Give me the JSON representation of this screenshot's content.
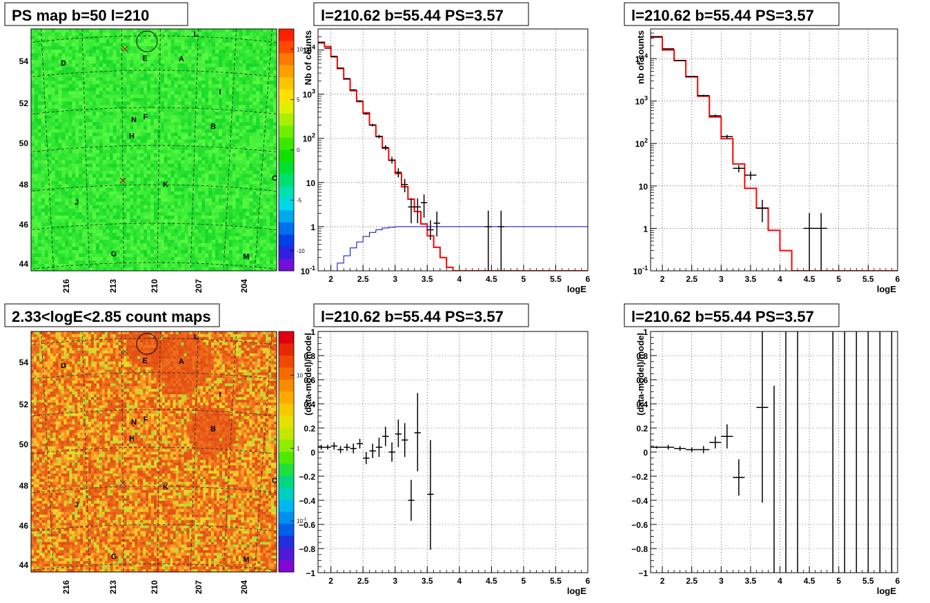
{
  "chart_data": [
    {
      "type": "heatmap",
      "title": "PS map b=50 l=210",
      "x_tick_labels": [
        "216",
        "213",
        "210",
        "207",
        "204"
      ],
      "y_tick_labels": [
        "44",
        "46",
        "48",
        "50",
        "52",
        "54"
      ],
      "colorbar": {
        "scale": "linear",
        "range": [
          -12,
          12
        ],
        "tick_labels": [
          "10",
          "5",
          "0",
          "-5",
          "-10"
        ]
      },
      "source_labels": [
        "L",
        "E",
        "A",
        "D",
        "I",
        "N",
        "F",
        "H",
        "B",
        "C",
        "K",
        "J",
        "G",
        "M"
      ]
    },
    {
      "type": "line",
      "title": "l=210.62 b=55.44 PS=3.57",
      "xlabel": "logE",
      "ylabel": "Nb of counts",
      "xlim": [
        1.8,
        6
      ],
      "ylim": [
        0.1,
        30000
      ],
      "yscale": "log",
      "grid": true,
      "x_tick_labels": [
        "2",
        "2.5",
        "3",
        "3.5",
        "4",
        "4.5",
        "5",
        "5.5",
        "6"
      ],
      "y_tick_labels": [
        "10^-1",
        "1",
        "10",
        "10^2",
        "10^3",
        "10^4"
      ],
      "series": [
        {
          "name": "",
          "role": "model",
          "color": "#ff0000",
          "bin_edges": [
            1.8,
            1.9,
            2.0,
            2.1,
            2.2,
            2.3,
            2.4,
            2.5,
            2.6,
            2.7,
            2.8,
            2.9,
            3.0,
            3.1,
            3.2,
            3.3,
            3.4,
            3.5,
            3.6,
            3.7,
            3.8,
            3.9,
            4.0,
            4.1,
            4.2,
            4.3,
            4.4,
            4.5,
            4.6,
            4.7,
            4.8,
            4.9,
            5.0,
            5.1,
            5.2,
            5.3,
            5.4,
            5.5,
            5.6,
            5.7,
            5.8,
            5.9,
            6.0
          ],
          "values": [
            15000,
            12000,
            7000,
            3800,
            2200,
            1200,
            680,
            380,
            200,
            110,
            60,
            32,
            16,
            8,
            4.2,
            2.2,
            1.15,
            0.62,
            0.34,
            0.2,
            0.12,
            0.1,
            0.1,
            0.1,
            0.1,
            0.1,
            0.1,
            0.1,
            0.1,
            0.1,
            0.1,
            0.1,
            0.1,
            0.1,
            0.1,
            0.1,
            0.1,
            0.1,
            0.1,
            0.1,
            0.1,
            0.1
          ]
        },
        {
          "name": "",
          "role": "background",
          "color": "#0000cc",
          "bin_edges": [
            2.0,
            2.1,
            2.2,
            2.3,
            2.4,
            2.5,
            2.6,
            2.7,
            2.8,
            2.9,
            3.0,
            3.1,
            3.2,
            3.3,
            3.4,
            3.5,
            3.6,
            3.7,
            3.8,
            3.9,
            4.0,
            4.1,
            4.2,
            4.3,
            4.4,
            4.5,
            4.6,
            4.7,
            4.8,
            4.9,
            5.0,
            5.1,
            5.2,
            5.3,
            5.4,
            5.5,
            5.6,
            5.7,
            5.8,
            5.9,
            6.0
          ],
          "values": [
            0.1,
            0.15,
            0.22,
            0.33,
            0.45,
            0.6,
            0.74,
            0.85,
            0.93,
            0.97,
            1,
            1,
            1,
            1,
            1,
            1,
            1,
            1,
            1,
            1,
            1,
            1,
            1,
            1,
            1,
            1,
            1,
            1,
            1,
            1,
            1,
            1,
            1,
            1,
            1,
            1,
            1,
            1,
            1,
            1
          ]
        },
        {
          "name": "",
          "role": "data",
          "color": "#000000",
          "points": [
            {
              "x": 1.85,
              "y": 14500,
              "xerr": 0.05,
              "lo": 14300,
              "hi": 14700
            },
            {
              "x": 1.95,
              "y": 11000,
              "xerr": 0.05,
              "lo": 10800,
              "hi": 11200
            },
            {
              "x": 2.05,
              "y": 7200,
              "xerr": 0.05,
              "lo": 7000,
              "hi": 7400
            },
            {
              "x": 2.15,
              "y": 3900,
              "xerr": 0.05,
              "lo": 3800,
              "hi": 4000
            },
            {
              "x": 2.25,
              "y": 2250,
              "xerr": 0.05,
              "lo": 2200,
              "hi": 2300
            },
            {
              "x": 2.35,
              "y": 1250,
              "xerr": 0.05,
              "lo": 1215,
              "hi": 1285
            },
            {
              "x": 2.45,
              "y": 700,
              "xerr": 0.05,
              "lo": 674,
              "hi": 726
            },
            {
              "x": 2.55,
              "y": 360,
              "xerr": 0.05,
              "lo": 341,
              "hi": 379
            },
            {
              "x": 2.65,
              "y": 200,
              "xerr": 0.05,
              "lo": 186,
              "hi": 214
            },
            {
              "x": 2.75,
              "y": 110,
              "xerr": 0.05,
              "lo": 100,
              "hi": 120
            },
            {
              "x": 2.85,
              "y": 62,
              "xerr": 0.05,
              "lo": 54,
              "hi": 70
            },
            {
              "x": 2.95,
              "y": 32,
              "xerr": 0.05,
              "lo": 27,
              "hi": 38
            },
            {
              "x": 3.05,
              "y": 17,
              "xerr": 0.05,
              "lo": 13,
              "hi": 21
            },
            {
              "x": 3.15,
              "y": 9,
              "xerr": 0.05,
              "lo": 6,
              "hi": 12
            },
            {
              "x": 3.25,
              "y": 2.8,
              "xerr": 0.05,
              "lo": 1.2,
              "hi": 4.4
            },
            {
              "x": 3.35,
              "y": 2.8,
              "xerr": 0.05,
              "lo": 1.2,
              "hi": 4.4
            },
            {
              "x": 3.45,
              "y": 3.5,
              "xerr": 0.05,
              "lo": 1.6,
              "hi": 5.4
            },
            {
              "x": 3.55,
              "y": 0.85,
              "xerr": 0.05,
              "lo": 0.5,
              "hi": 1.4
            },
            {
              "x": 3.65,
              "y": 1.2,
              "xerr": 0.05,
              "lo": 0.6,
              "hi": 2.2
            },
            {
              "x": 4.45,
              "y": 1,
              "xerr": 0.05,
              "lo": 0.1,
              "hi": 2.3
            },
            {
              "x": 4.65,
              "y": 1,
              "xerr": 0.05,
              "lo": 0.1,
              "hi": 2.3
            }
          ]
        }
      ]
    },
    {
      "type": "line",
      "title": "l=210.62 b=55.44 PS=3.57",
      "xlabel": "logE",
      "ylabel": "nb of counts",
      "xlim": [
        1.8,
        6
      ],
      "ylim": [
        0.1,
        50000
      ],
      "yscale": "log",
      "grid": true,
      "x_tick_labels": [
        "2",
        "2.5",
        "3",
        "3.5",
        "4",
        "4.5",
        "5",
        "5.5",
        "6"
      ],
      "y_tick_labels": [
        "10^-1",
        "1",
        "10",
        "10^2",
        "10^3",
        "10^4"
      ],
      "series": [
        {
          "name": "",
          "role": "model",
          "color": "#ff0000",
          "bin_edges": [
            1.8,
            2.0,
            2.2,
            2.4,
            2.6,
            2.8,
            3.0,
            3.2,
            3.4,
            3.6,
            3.8,
            4.0,
            4.2,
            4.4,
            4.6,
            4.8,
            5.0,
            5.2,
            5.4,
            5.6,
            5.8,
            6.0
          ],
          "values": [
            32000,
            16000,
            9000,
            3700,
            1300,
            420,
            130,
            33,
            8.8,
            3.0,
            0.9,
            0.3,
            0.1,
            0.1,
            0.1,
            0.1,
            0.1,
            0.1,
            0.1,
            0.1,
            0.1
          ]
        },
        {
          "name": "",
          "role": "data",
          "color": "#000000",
          "points": [
            {
              "x": 1.9,
              "y": 33000,
              "xerr": 0.1,
              "lo": 32800,
              "hi": 33200
            },
            {
              "x": 2.1,
              "y": 17000,
              "xerr": 0.1,
              "lo": 16800,
              "hi": 17200
            },
            {
              "x": 2.3,
              "y": 9000,
              "xerr": 0.1,
              "lo": 8850,
              "hi": 9150
            },
            {
              "x": 2.5,
              "y": 3800,
              "xerr": 0.1,
              "lo": 3700,
              "hi": 3900
            },
            {
              "x": 2.7,
              "y": 1350,
              "xerr": 0.1,
              "lo": 1300,
              "hi": 1400
            },
            {
              "x": 2.9,
              "y": 450,
              "xerr": 0.1,
              "lo": 420,
              "hi": 480
            },
            {
              "x": 3.1,
              "y": 145,
              "xerr": 0.1,
              "lo": 130,
              "hi": 160
            },
            {
              "x": 3.3,
              "y": 26,
              "xerr": 0.1,
              "lo": 21,
              "hi": 31
            },
            {
              "x": 3.5,
              "y": 18,
              "xerr": 0.1,
              "lo": 14,
              "hi": 22
            },
            {
              "x": 3.7,
              "y": 3,
              "xerr": 0.1,
              "lo": 1.4,
              "hi": 4.7
            },
            {
              "x": 4.5,
              "y": 1,
              "xerr": 0.1,
              "lo": 0.1,
              "hi": 2.3
            },
            {
              "x": 4.7,
              "y": 1,
              "xerr": 0.1,
              "lo": 0.1,
              "hi": 2.3
            }
          ]
        }
      ]
    },
    {
      "type": "heatmap",
      "title": "2.33<logE<2.85 count maps",
      "x_tick_labels": [
        "216",
        "213",
        "210",
        "207",
        "204"
      ],
      "y_tick_labels": [
        "44",
        "46",
        "48",
        "50",
        "52",
        "54"
      ],
      "colorbar": {
        "scale": "log",
        "range": [
          0.02,
          40
        ],
        "tick_labels": [
          "10",
          "1",
          "10^-1"
        ]
      },
      "source_labels": [
        "L",
        "E",
        "A",
        "D",
        "I",
        "N",
        "F",
        "H",
        "B",
        "C",
        "K",
        "J",
        "G",
        "M"
      ]
    },
    {
      "type": "scatter",
      "title": "l=210.62 b=55.44 PS=3.57",
      "xlabel": "logE",
      "ylabel": "(data-model)/model",
      "xlim": [
        1.8,
        6
      ],
      "ylim": [
        -1,
        1
      ],
      "grid": true,
      "x_tick_labels": [
        "2",
        "2.5",
        "3",
        "3.5",
        "4",
        "4.5",
        "5",
        "5.5",
        "6"
      ],
      "y_tick_labels": [
        "−1",
        "−0.8",
        "−0.6",
        "−0.4",
        "−0.2",
        "0",
        "0.2",
        "0.4",
        "0.6",
        "0.8",
        "1"
      ],
      "series": [
        {
          "name": "",
          "role": "data",
          "color": "#000000",
          "points": [
            {
              "x": 1.85,
              "y": 0.04,
              "xerr": 0.05,
              "lo": 0.02,
              "hi": 0.06
            },
            {
              "x": 1.95,
              "y": 0.04,
              "xerr": 0.05,
              "lo": 0.02,
              "hi": 0.06
            },
            {
              "x": 2.05,
              "y": 0.05,
              "xerr": 0.05,
              "lo": 0.02,
              "hi": 0.08
            },
            {
              "x": 2.15,
              "y": 0.02,
              "xerr": 0.05,
              "lo": -0.01,
              "hi": 0.05
            },
            {
              "x": 2.25,
              "y": 0.04,
              "xerr": 0.05,
              "lo": 0.01,
              "hi": 0.07
            },
            {
              "x": 2.35,
              "y": 0.03,
              "xerr": 0.05,
              "lo": -0.01,
              "hi": 0.07
            },
            {
              "x": 2.45,
              "y": 0.07,
              "xerr": 0.05,
              "lo": 0.03,
              "hi": 0.11
            },
            {
              "x": 2.55,
              "y": -0.05,
              "xerr": 0.05,
              "lo": -0.1,
              "hi": 0.0
            },
            {
              "x": 2.65,
              "y": 0.01,
              "xerr": 0.05,
              "lo": -0.05,
              "hi": 0.07
            },
            {
              "x": 2.75,
              "y": 0.04,
              "xerr": 0.05,
              "lo": -0.04,
              "hi": 0.12
            },
            {
              "x": 2.85,
              "y": 0.13,
              "xerr": 0.05,
              "lo": 0.05,
              "hi": 0.21
            },
            {
              "x": 2.95,
              "y": 0.0,
              "xerr": 0.05,
              "lo": -0.08,
              "hi": 0.08
            },
            {
              "x": 3.05,
              "y": 0.15,
              "xerr": 0.05,
              "lo": 0.04,
              "hi": 0.27
            },
            {
              "x": 3.15,
              "y": 0.1,
              "xerr": 0.05,
              "lo": -0.04,
              "hi": 0.24
            },
            {
              "x": 3.25,
              "y": -0.4,
              "xerr": 0.05,
              "lo": -0.57,
              "hi": -0.23
            },
            {
              "x": 3.35,
              "y": 0.16,
              "xerr": 0.05,
              "lo": -0.16,
              "hi": 0.49
            },
            {
              "x": 3.55,
              "y": -0.35,
              "xerr": 0.05,
              "lo": -0.81,
              "hi": 0.1
            }
          ]
        }
      ]
    },
    {
      "type": "scatter",
      "title": "l=210.62 b=55.44 PS=3.57",
      "xlabel": "logE",
      "ylabel": "(data-model)/model",
      "xlim": [
        1.8,
        6
      ],
      "ylim": [
        -1,
        1
      ],
      "grid": true,
      "x_tick_labels": [
        "2",
        "2.5",
        "3",
        "3.5",
        "4",
        "4.5",
        "5",
        "5.5",
        "6"
      ],
      "y_tick_labels": [
        "−1",
        "−0.8",
        "−0.6",
        "−0.4",
        "−0.2",
        "0",
        "0.2",
        "0.4",
        "0.6",
        "0.8",
        "1"
      ],
      "series": [
        {
          "name": "",
          "role": "data",
          "color": "#000000",
          "points": [
            {
              "x": 1.9,
              "y": 0.04,
              "xerr": 0.1,
              "lo": 0.03,
              "hi": 0.05
            },
            {
              "x": 2.1,
              "y": 0.04,
              "xerr": 0.1,
              "lo": 0.02,
              "hi": 0.06
            },
            {
              "x": 2.3,
              "y": 0.03,
              "xerr": 0.1,
              "lo": 0.01,
              "hi": 0.05
            },
            {
              "x": 2.5,
              "y": 0.02,
              "xerr": 0.1,
              "lo": 0.0,
              "hi": 0.04
            },
            {
              "x": 2.7,
              "y": 0.02,
              "xerr": 0.1,
              "lo": -0.01,
              "hi": 0.05
            },
            {
              "x": 2.9,
              "y": 0.08,
              "xerr": 0.1,
              "lo": 0.03,
              "hi": 0.13
            },
            {
              "x": 3.1,
              "y": 0.13,
              "xerr": 0.1,
              "lo": 0.03,
              "hi": 0.23
            },
            {
              "x": 3.3,
              "y": -0.21,
              "xerr": 0.1,
              "lo": -0.36,
              "hi": -0.06
            },
            {
              "x": 3.7,
              "y": 0.37,
              "xerr": 0.1,
              "lo": -0.42,
              "hi": 1.0
            },
            {
              "x": 3.9,
              "y": -1,
              "xerr": 0.0,
              "lo": -1,
              "hi": 0.55
            },
            {
              "x": 4.1,
              "y": -1,
              "xerr": 0.0,
              "lo": -1,
              "hi": 1
            },
            {
              "x": 4.3,
              "y": -1,
              "xerr": 0.0,
              "lo": -1,
              "hi": 1
            },
            {
              "x": 4.9,
              "y": -1,
              "xerr": 0.0,
              "lo": -1,
              "hi": 1
            },
            {
              "x": 5.1,
              "y": -1,
              "xerr": 0.0,
              "lo": -1,
              "hi": 1
            },
            {
              "x": 5.3,
              "y": -1,
              "xerr": 0.0,
              "lo": -1,
              "hi": 1
            },
            {
              "x": 5.5,
              "y": -1,
              "xerr": 0.0,
              "lo": -1,
              "hi": 1
            },
            {
              "x": 5.7,
              "y": -1,
              "xerr": 0.0,
              "lo": -1,
              "hi": 1
            },
            {
              "x": 5.9,
              "y": -1,
              "xerr": 0.0,
              "lo": -1,
              "hi": 1
            }
          ]
        }
      ]
    }
  ]
}
